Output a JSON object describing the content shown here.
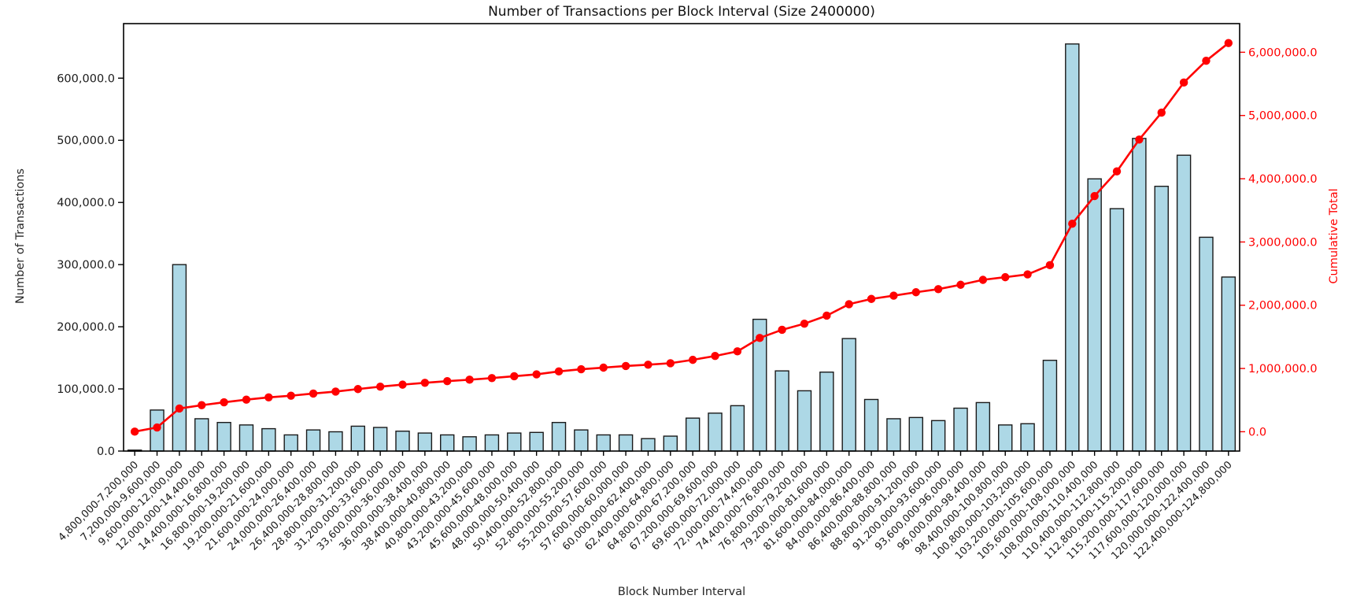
{
  "figure": {
    "title": "Number of Transactions per Block Interval (Size 2400000)",
    "xlabel": "Block Number Interval",
    "ylabel_left": "Number of Transactions",
    "ylabel_right": "Cumulative Total",
    "colors": {
      "bar_fill": "#add8e6",
      "bar_edge": "#1a1a1a",
      "line": "#ff0000",
      "axis": "#000000",
      "left_text": "#1a1a1a",
      "right_text": "#ff0000",
      "background": "#ffffff"
    }
  },
  "chart_data": {
    "type": "bar",
    "title": "Number of Transactions per Block Interval (Size 2400000)",
    "xlabel": "Block Number Interval",
    "ylabel": "Number of Transactions",
    "ylabel_right": "Cumulative Total",
    "grid": false,
    "legend": "none",
    "categories": [
      "4,800,000-7,200,000",
      "7,200,000-9,600,000",
      "9,600,000-12,000,000",
      "12,000,000-14,400,000",
      "14,400,000-16,800,000",
      "16,800,000-19,200,000",
      "19,200,000-21,600,000",
      "21,600,000-24,000,000",
      "24,000,000-26,400,000",
      "26,400,000-28,800,000",
      "28,800,000-31,200,000",
      "31,200,000-33,600,000",
      "33,600,000-36,000,000",
      "36,000,000-38,400,000",
      "38,400,000-40,800,000",
      "40,800,000-43,200,000",
      "43,200,000-45,600,000",
      "45,600,000-48,000,000",
      "48,000,000-50,400,000",
      "50,400,000-52,800,000",
      "52,800,000-55,200,000",
      "55,200,000-57,600,000",
      "57,600,000-60,000,000",
      "60,000,000-62,400,000",
      "62,400,000-64,800,000",
      "64,800,000-67,200,000",
      "67,200,000-69,600,000",
      "69,600,000-72,000,000",
      "72,000,000-74,400,000",
      "74,400,000-76,800,000",
      "76,800,000-79,200,000",
      "79,200,000-81,600,000",
      "81,600,000-84,000,000",
      "84,000,000-86,400,000",
      "86,400,000-88,800,000",
      "88,800,000-91,200,000",
      "91,200,000-93,600,000",
      "93,600,000-96,000,000",
      "96,000,000-98,400,000",
      "98,400,000-100,800,000",
      "100,800,000-103,200,000",
      "103,200,000-105,600,000",
      "105,600,000-108,000,000",
      "108,000,000-110,400,000",
      "110,400,000-112,800,000",
      "112,800,000-115,200,000",
      "115,200,000-117,600,000",
      "117,600,000-120,000,000",
      "120,000,000-122,400,000",
      "122,400,000-124,800,000"
    ],
    "series": [
      {
        "name": "Number of Transactions",
        "type": "bar",
        "axis": "left",
        "values": [
          1500,
          66000,
          300000,
          52000,
          46000,
          42000,
          36000,
          26000,
          34000,
          31000,
          40000,
          38000,
          32000,
          29000,
          26000,
          23000,
          26000,
          29000,
          30000,
          46000,
          34000,
          26000,
          26000,
          20000,
          24000,
          53000,
          61000,
          73000,
          212000,
          129000,
          97000,
          127000,
          181000,
          83000,
          52000,
          54000,
          49000,
          69000,
          78000,
          42000,
          44000,
          146000,
          655000,
          438000,
          390000,
          503000,
          426000,
          476000,
          344000,
          280000
        ]
      },
      {
        "name": "Cumulative Total",
        "type": "line",
        "axis": "right",
        "values": [
          1500,
          67500,
          367500,
          419500,
          465500,
          507500,
          543500,
          569500,
          603500,
          634500,
          674500,
          712500,
          744500,
          773500,
          799500,
          822500,
          848500,
          877500,
          907500,
          953500,
          987500,
          1013500,
          1039500,
          1059500,
          1083500,
          1136500,
          1197500,
          1270500,
          1482500,
          1611500,
          1708500,
          1835500,
          2016500,
          2099500,
          2151500,
          2205500,
          2254500,
          2323500,
          2401500,
          2443500,
          2487500,
          2633500,
          3288500,
          3726500,
          4116500,
          4619500,
          5045500,
          5521500,
          5865500,
          6145500
        ]
      }
    ],
    "axes": {
      "left": {
        "lim": [
          0,
          687750
        ],
        "tick_values": [
          0,
          100000,
          200000,
          300000,
          400000,
          500000,
          600000
        ],
        "tick_labels": [
          "0.0",
          "100,000.0",
          "200,000.0",
          "300,000.0",
          "400,000.0",
          "500,000.0",
          "600,000.0"
        ]
      },
      "right": {
        "lim": [
          -305700,
          6452700
        ],
        "tick_values": [
          0,
          1000000,
          2000000,
          3000000,
          4000000,
          5000000,
          6000000
        ],
        "tick_labels": [
          "0.0",
          "1,000,000.0",
          "2,000,000.0",
          "3,000,000.0",
          "4,000,000.0",
          "5,000,000.0",
          "6,000,000.0"
        ]
      }
    }
  }
}
